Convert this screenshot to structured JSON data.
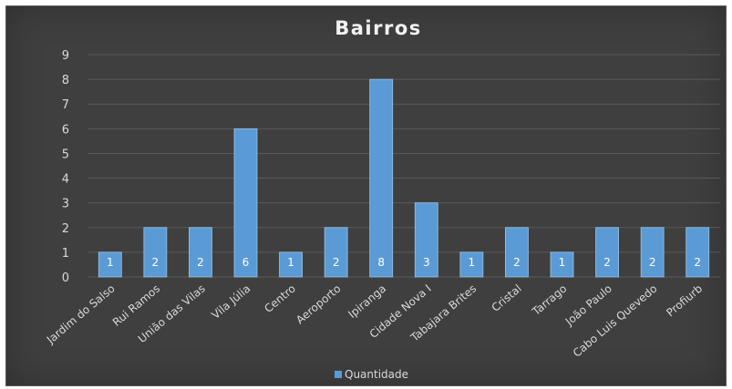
{
  "chart_data": {
    "type": "bar",
    "title": "Bairros",
    "categories": [
      "Jardim do Salso",
      "Rui Ramos",
      "União das Vilas",
      "Vila Júlia",
      "Centro",
      "Aeroporto",
      "Ipiranga",
      "Cidade Nova I",
      "Tabajara Brites",
      "Cristal",
      "Tarrago",
      "João Paulo",
      "Cabo Luis Quevedo",
      "Profiurb"
    ],
    "series": [
      {
        "name": "Quantidade",
        "values": [
          1,
          2,
          2,
          6,
          1,
          2,
          8,
          3,
          1,
          2,
          1,
          2,
          2,
          2
        ]
      }
    ],
    "data_labels": [
      "1",
      "2",
      "2",
      "6",
      "1",
      "2",
      "8",
      "3",
      "1",
      "2",
      "1",
      "2",
      "2",
      "2"
    ],
    "yticks": [
      "0",
      "1",
      "2",
      "3",
      "4",
      "5",
      "6",
      "7",
      "8",
      "9"
    ],
    "ylim": [
      0,
      9
    ],
    "xlabel": "",
    "ylabel": "",
    "grid": true,
    "legend_position": "bottom",
    "colors": {
      "background": "#404040",
      "bar": "#5b9bd5",
      "bar_edge": "#9cc3e5",
      "grid": "#595959",
      "text": "#d9d9d9",
      "title": "#f2f2f2"
    }
  }
}
